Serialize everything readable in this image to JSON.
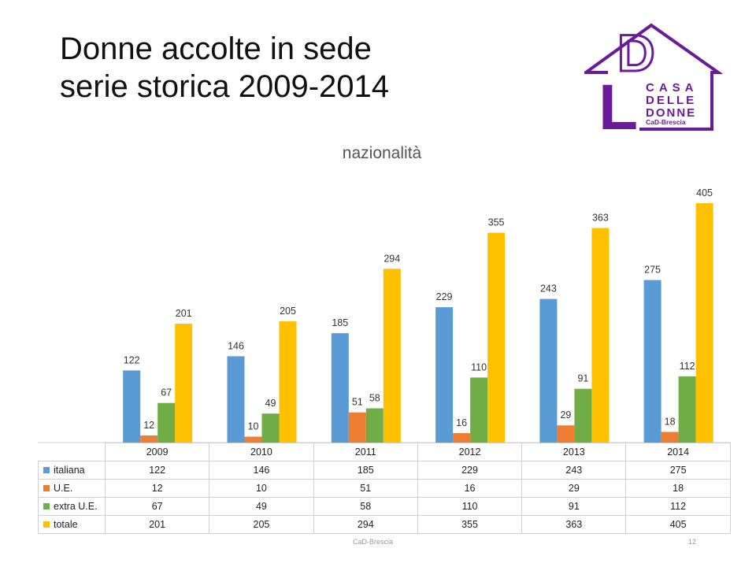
{
  "slide": {
    "title_line1": "Donne accolte in sede",
    "title_line2": "serie storica 2009-2014",
    "footer_text": "CaD-Brescia",
    "page_number": "12"
  },
  "logo": {
    "letter_d": "D",
    "letter_l": "L",
    "line1": "CASA",
    "line2": "DELLE",
    "line3": "DONNE",
    "line4": "CaD-Brescia",
    "color": "#6a1b9a"
  },
  "chart_data": {
    "type": "bar",
    "title": "nazionalità",
    "categories": [
      "2009",
      "2010",
      "2011",
      "2012",
      "2013",
      "2014"
    ],
    "series": [
      {
        "name": "italiana",
        "color": "#5b9bd5",
        "values": [
          122,
          146,
          185,
          229,
          243,
          275
        ]
      },
      {
        "name": "U.E.",
        "color": "#ed7d31",
        "values": [
          12,
          10,
          51,
          16,
          29,
          18
        ]
      },
      {
        "name": "extra U.E.",
        "color": "#70ad47",
        "values": [
          67,
          49,
          58,
          110,
          91,
          112
        ]
      },
      {
        "name": "totale",
        "color": "#ffc000",
        "values": [
          201,
          205,
          294,
          355,
          363,
          405
        ]
      }
    ],
    "data_labels": true,
    "gridlines": false,
    "legend": "data table below chart"
  }
}
